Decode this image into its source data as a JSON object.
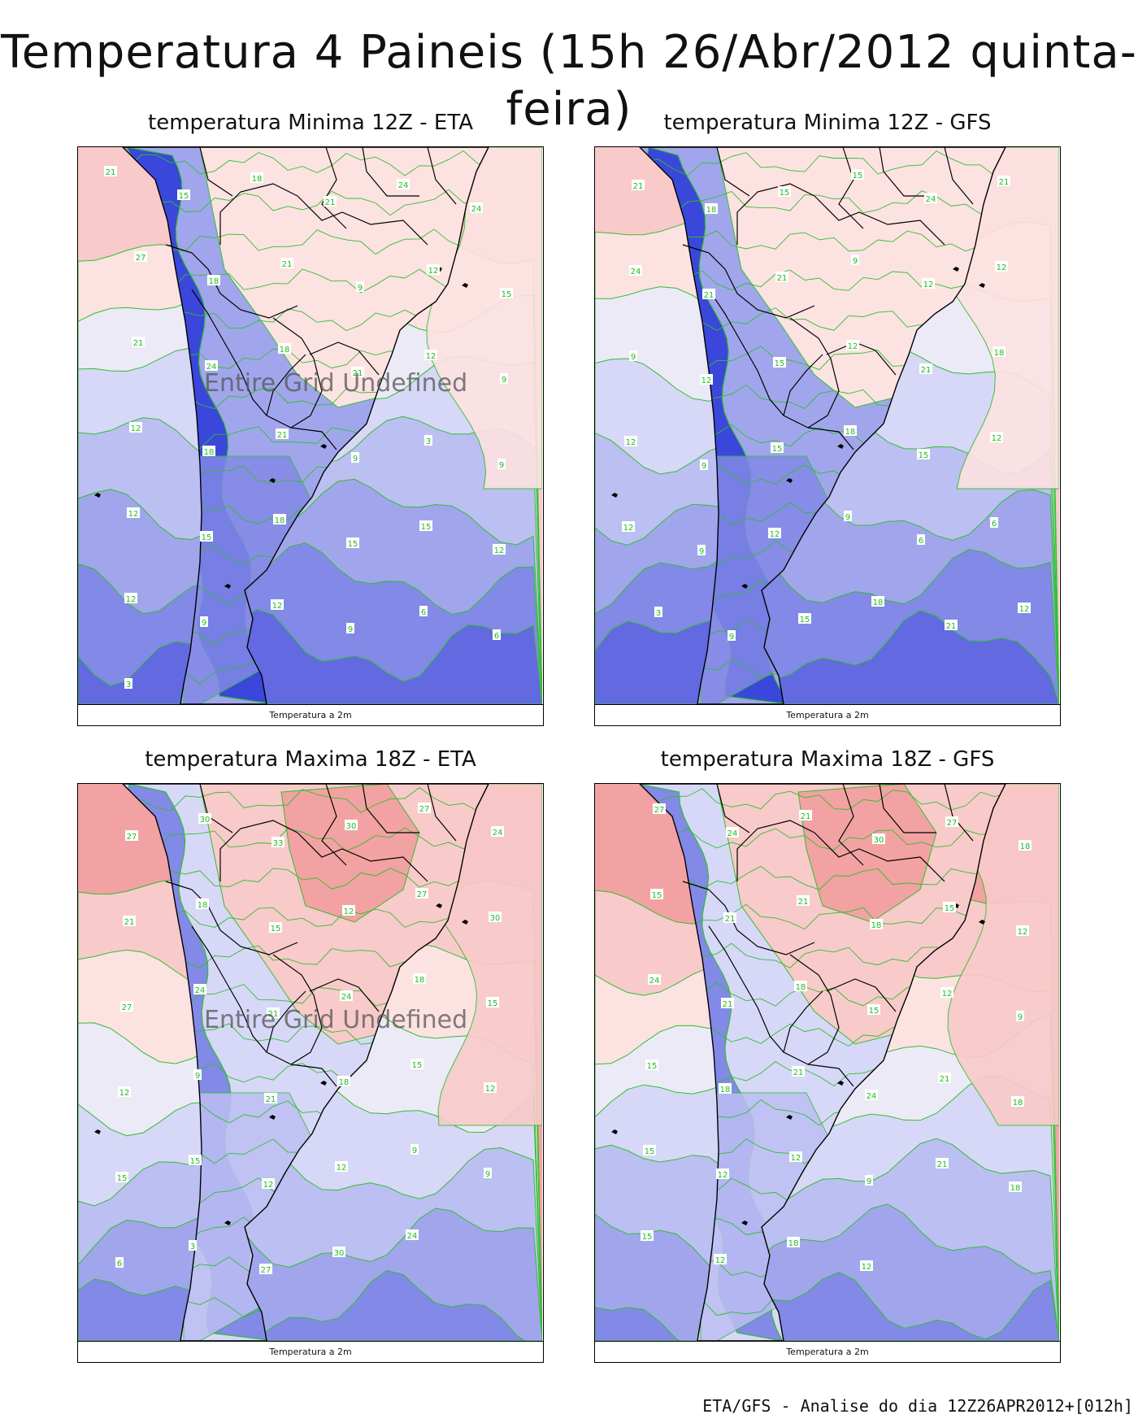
{
  "title": "Temperatura 4 Paineis (15h 26/Abr/2012 quinta-feira)",
  "footer_note": "ETA/GFS - Analise do dia 12Z26APR2012+[012h]",
  "colors": {
    "warm_dark": "#f2a2a2",
    "warm": "#f9caca",
    "warm_light": "#fde2e2",
    "neutral": "#eceaf7",
    "cool_1": "#d7d8f7",
    "cool_2": "#bcbff2",
    "cool_3": "#a1a6ec",
    "cool_4": "#8389e6",
    "cool_5": "#6269e1",
    "cold": "#3b47da",
    "contour": "#2fbf2f",
    "border": "#000000"
  },
  "panels": [
    {
      "id": "min-eta",
      "title": "temperatura Minima 12Z - ETA",
      "footer": "Temperatura a 2m",
      "undefined_text": "Entire Grid Undefined",
      "labels": [
        "21",
        "15",
        "18",
        "21",
        "24",
        "24",
        "27",
        "18",
        "21",
        "9",
        "12",
        "15",
        "21",
        "24",
        "18",
        "21",
        "12",
        "9",
        "12",
        "18",
        "21",
        "9",
        "3",
        "9",
        "12",
        "15",
        "18",
        "15",
        "15",
        "12",
        "12",
        "9",
        "12",
        "9",
        "6",
        "6",
        "3"
      ]
    },
    {
      "id": "min-gfs",
      "title": "temperatura Minima 12Z - GFS",
      "footer": "Temperatura a 2m",
      "undefined_text": "",
      "labels": [
        "21",
        "18",
        "15",
        "15",
        "24",
        "21",
        "24",
        "21",
        "21",
        "9",
        "12",
        "12",
        "9",
        "12",
        "15",
        "12",
        "21",
        "18",
        "12",
        "9",
        "15",
        "18",
        "15",
        "12",
        "12",
        "9",
        "12",
        "9",
        "6",
        "6",
        "3",
        "9",
        "15",
        "18",
        "21",
        "12"
      ]
    },
    {
      "id": "max-eta",
      "title": "temperatura Maxima 18Z - ETA",
      "footer": "Temperatura a 2m",
      "undefined_text": "Entire Grid Undefined",
      "labels": [
        "27",
        "30",
        "33",
        "30",
        "27",
        "24",
        "21",
        "18",
        "15",
        "12",
        "27",
        "30",
        "27",
        "24",
        "21",
        "24",
        "18",
        "15",
        "12",
        "9",
        "21",
        "18",
        "15",
        "12",
        "15",
        "15",
        "12",
        "12",
        "9",
        "9",
        "6",
        "3",
        "27",
        "30",
        "24"
      ]
    },
    {
      "id": "max-gfs",
      "title": "temperatura Maxima 18Z - GFS",
      "footer": "Temperatura a 2m",
      "undefined_text": "",
      "labels": [
        "27",
        "24",
        "21",
        "30",
        "27",
        "18",
        "15",
        "21",
        "21",
        "18",
        "15",
        "12",
        "24",
        "21",
        "18",
        "15",
        "12",
        "9",
        "15",
        "18",
        "21",
        "24",
        "21",
        "18",
        "15",
        "12",
        "12",
        "9",
        "21",
        "18",
        "15",
        "12",
        "18",
        "12"
      ]
    }
  ]
}
